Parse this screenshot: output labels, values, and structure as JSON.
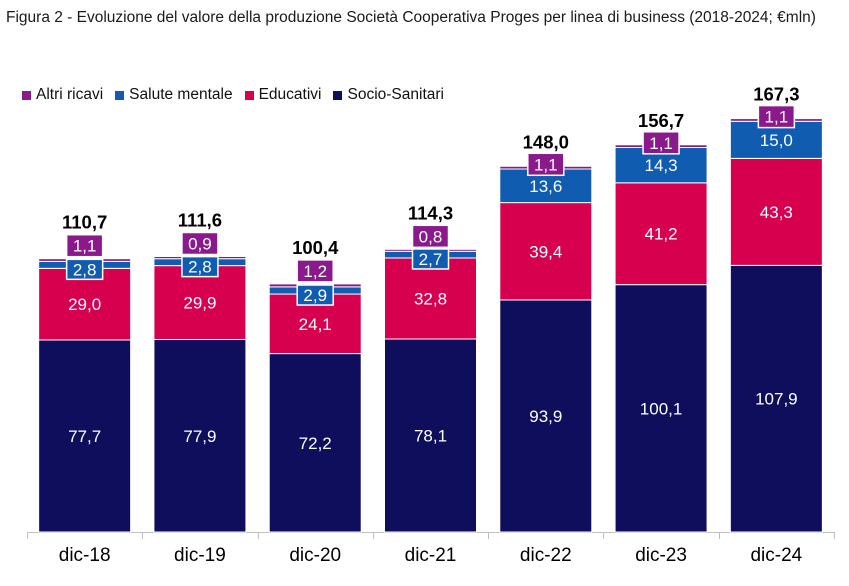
{
  "figure": {
    "title": "Figura 2 - Evoluzione del valore della produzione Società Cooperativa Proges per linea di business (2018-2024; €mln)"
  },
  "chart_data": {
    "type": "bar",
    "stacked": true,
    "categories": [
      "dic-18",
      "dic-19",
      "dic-20",
      "dic-21",
      "dic-22",
      "dic-23",
      "dic-24"
    ],
    "series": [
      {
        "name": "Socio-Sanitari",
        "color": "#0e0e5c",
        "values": [
          77.7,
          77.9,
          72.2,
          78.1,
          93.9,
          100.1,
          107.9
        ],
        "labels": [
          "77,7",
          "77,9",
          "72,2",
          "78,1",
          "93,9",
          "100,1",
          "107,9"
        ]
      },
      {
        "name": "Educativi",
        "color": "#d6004f",
        "values": [
          29.0,
          29.9,
          24.1,
          32.8,
          39.4,
          41.2,
          43.3
        ],
        "labels": [
          "29,0",
          "29,9",
          "24,1",
          "32,8",
          "39,4",
          "41,2",
          "43,3"
        ]
      },
      {
        "name": "Salute mentale",
        "color": "#0f5cb0",
        "values": [
          2.8,
          2.8,
          2.9,
          2.7,
          13.6,
          14.3,
          15.0
        ],
        "labels": [
          "2,8",
          "2,8",
          "2,9",
          "2,7",
          "13,6",
          "14,3",
          "15,0"
        ]
      },
      {
        "name": "Altri ricavi",
        "color": "#8a1a8c",
        "values": [
          1.1,
          0.9,
          1.2,
          0.8,
          1.1,
          1.1,
          1.1
        ],
        "labels": [
          "1,1",
          "0,9",
          "1,2",
          "0,8",
          "1,1",
          "1,1",
          "1,1"
        ]
      }
    ],
    "totals": [
      110.7,
      111.6,
      100.4,
      114.3,
      148.0,
      156.7,
      167.3
    ],
    "total_labels": [
      "110,7",
      "111,6",
      "100,4",
      "114,3",
      "148,0",
      "156,7",
      "167,3"
    ],
    "legend_order": [
      "Altri ricavi",
      "Salute mentale",
      "Educativi",
      "Socio-Sanitari"
    ],
    "legend_position": "top-left",
    "grid": false,
    "ylim": [
      0,
      170
    ]
  }
}
